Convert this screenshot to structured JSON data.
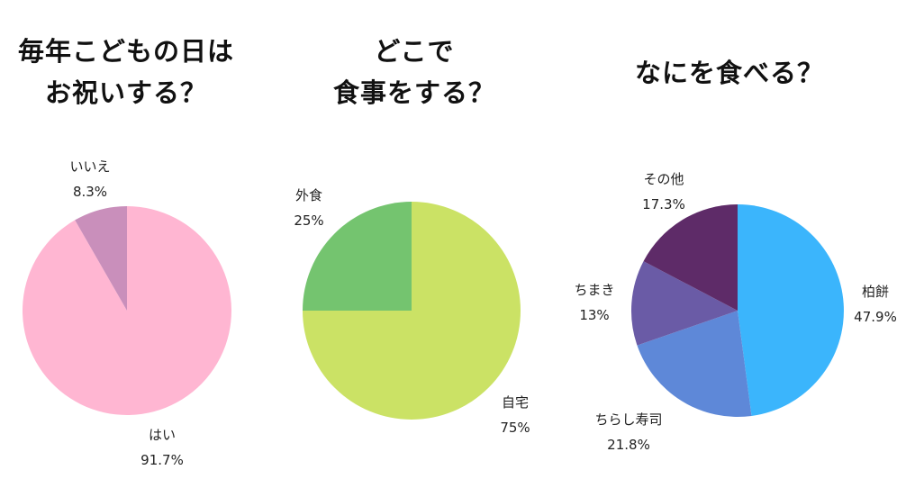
{
  "titles": [
    [
      "毎年こどもの日は",
      "お祝いする？"
    ],
    [
      "どこで",
      "食事をする？"
    ],
    [
      "なにを食べる？"
    ]
  ],
  "chart_data": [
    {
      "type": "pie",
      "title": "毎年こどもの日はお祝いする？",
      "slices": [
        {
          "label": "はい",
          "value": 91.7,
          "value_label": "91.7%",
          "color": "#FFB6D2"
        },
        {
          "label": "いいえ",
          "value": 8.3,
          "value_label": "8.3%",
          "color": "#C98FBB"
        }
      ]
    },
    {
      "type": "pie",
      "title": "どこで食事をする？",
      "slices": [
        {
          "label": "自宅",
          "value": 75,
          "value_label": "75%",
          "color": "#CBE265"
        },
        {
          "label": "外食",
          "value": 25,
          "value_label": "25%",
          "color": "#74C46F"
        }
      ]
    },
    {
      "type": "pie",
      "title": "なにを食べる？",
      "slices": [
        {
          "label": "柏餅",
          "value": 47.9,
          "value_label": "47.9%",
          "color": "#3BB5FC"
        },
        {
          "label": "ちらし寿司",
          "value": 21.8,
          "value_label": "21.8%",
          "color": "#5E88D8"
        },
        {
          "label": "ちまき",
          "value": 13,
          "value_label": "13%",
          "color": "#6A5BA6"
        },
        {
          "label": "その他",
          "value": 17.3,
          "value_label": "17.3%",
          "color": "#5E2B68"
        }
      ]
    }
  ]
}
